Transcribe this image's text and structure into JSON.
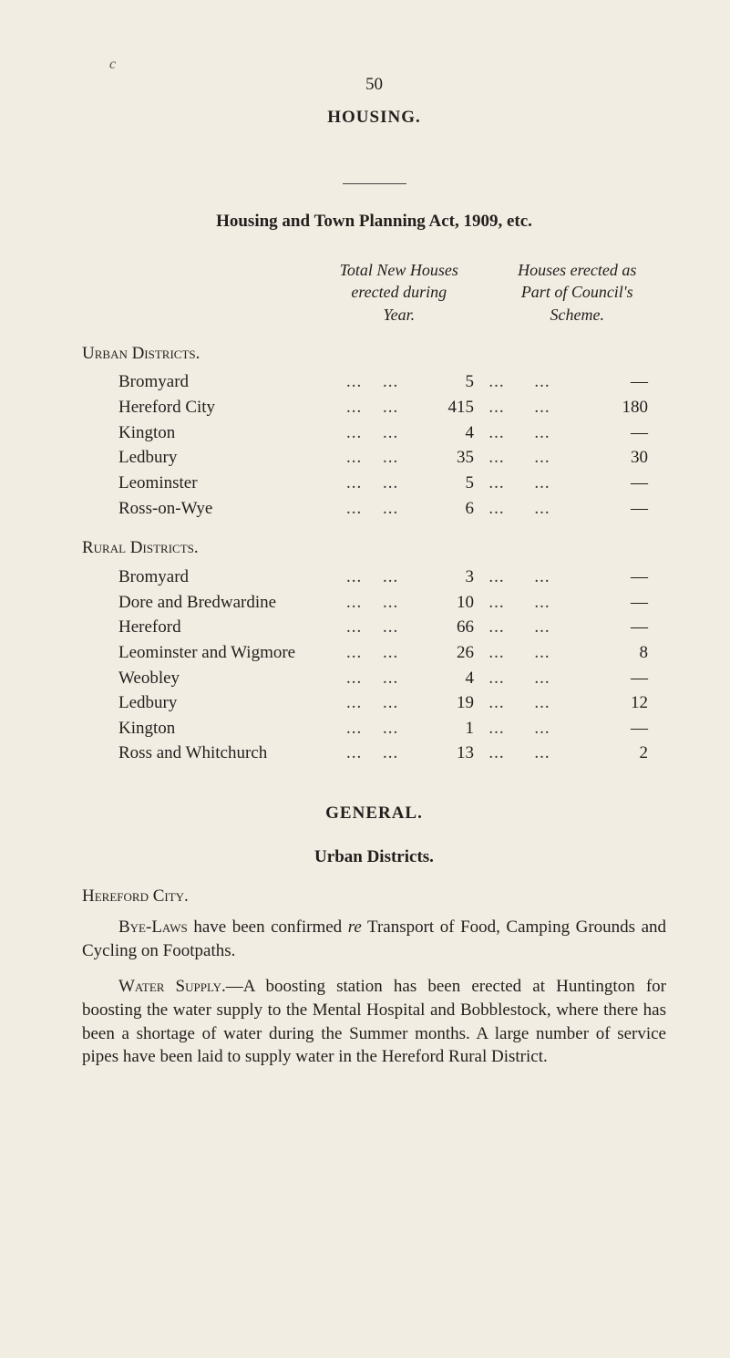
{
  "corner_mark": "c",
  "page_number": "50",
  "main_heading": "HOUSING.",
  "act_heading": "Housing and Town Planning Act, 1909, etc.",
  "column_headers": {
    "col1": "Total New Houses\nerected during\nYear.",
    "col2": "Houses erected as\nPart of Council's\nScheme."
  },
  "urban_label": "Urban Districts.",
  "rural_label": "Rural Districts.",
  "urban_rows": [
    {
      "name": "Bromyard",
      "v1": "5",
      "v2": "—"
    },
    {
      "name": "Hereford City",
      "v1": "415",
      "v2": "180"
    },
    {
      "name": "Kington",
      "v1": "4",
      "v2": "—"
    },
    {
      "name": "Ledbury",
      "v1": "35",
      "v2": "30"
    },
    {
      "name": "Leominster",
      "v1": "5",
      "v2": "—"
    },
    {
      "name": "Ross-on-Wye",
      "v1": "6",
      "v2": "—"
    }
  ],
  "rural_rows": [
    {
      "name": "Bromyard",
      "v1": "3",
      "v2": "—"
    },
    {
      "name": "Dore and Bredwardine",
      "v1": "10",
      "v2": "—"
    },
    {
      "name": "Hereford",
      "v1": "66",
      "v2": "—"
    },
    {
      "name": "Leominster and Wigmore",
      "v1": "26",
      "v2": "8"
    },
    {
      "name": "Weobley",
      "v1": "4",
      "v2": "—"
    },
    {
      "name": "Ledbury",
      "v1": "19",
      "v2": "12"
    },
    {
      "name": "Kington",
      "v1": "1",
      "v2": "—"
    },
    {
      "name": "Ross and Whitchurch",
      "v1": "13",
      "v2": "2"
    }
  ],
  "dots": "...",
  "general_heading": "GENERAL.",
  "urban_sub": "Urban Districts.",
  "hereford_city_label": "Hereford City.",
  "para1_lead": "Bye-Laws",
  "para1_rest": " have been confirmed ",
  "para1_re": "re",
  "para1_tail": " Transport of Food, Camping Grounds and Cycling on Footpaths.",
  "para2_lead": "Water Supply.",
  "para2_rest": "—A boosting station has been erected at Huntington for boosting the water supply to the Mental Hospital and Bobblestock, where there has been a shortage of water during the Summer months. A large number of service pipes have been laid to supply water in the Hereford Rural District."
}
